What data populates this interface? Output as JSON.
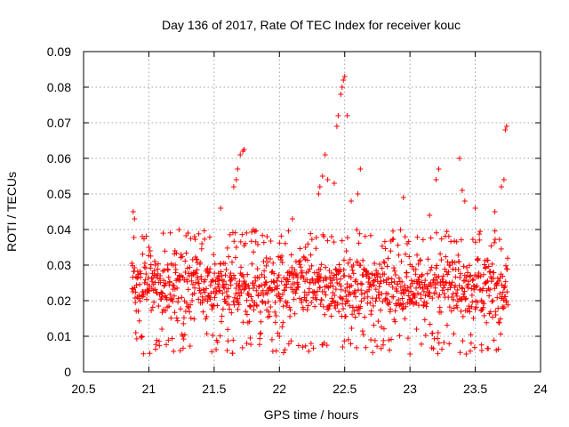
{
  "chart_data": {
    "type": "scatter",
    "title": "Day 136 of 2017, Rate Of TEC Index for receiver kouc",
    "xlabel": "GPS time / hours",
    "ylabel": "ROTI / TECUs",
    "xlim": [
      20.5,
      24
    ],
    "ylim": [
      0,
      0.09
    ],
    "x_ticks": [
      "20.5",
      "21",
      "21.5",
      "22",
      "22.5",
      "23",
      "23.5",
      "24"
    ],
    "y_ticks": [
      "0",
      "0.01",
      "0.02",
      "0.03",
      "0.04",
      "0.05",
      "0.06",
      "0.07",
      "0.08",
      "0.09"
    ],
    "grid": true,
    "marker": "+",
    "series": [
      {
        "name": "ROTI",
        "color": "#ff0000",
        "x_range": [
          20.87,
          23.75
        ],
        "typical_range": [
          0.005,
          0.04
        ],
        "sample_points": [
          [
            20.88,
            0.045
          ],
          [
            20.89,
            0.043
          ],
          [
            20.9,
            0.011
          ],
          [
            20.95,
            0.038
          ],
          [
            21.0,
            0.035
          ],
          [
            21.05,
            0.03
          ],
          [
            21.1,
            0.012
          ],
          [
            21.2,
            0.034
          ],
          [
            21.35,
            0.038
          ],
          [
            21.45,
            0.029
          ],
          [
            21.55,
            0.046
          ],
          [
            21.6,
            0.006
          ],
          [
            21.65,
            0.052
          ],
          [
            21.67,
            0.054
          ],
          [
            21.68,
            0.057
          ],
          [
            21.7,
            0.061
          ],
          [
            21.72,
            0.062
          ],
          [
            21.73,
            0.0625
          ],
          [
            21.75,
            0.008
          ],
          [
            21.8,
            0.04
          ],
          [
            21.9,
            0.032
          ],
          [
            22.0,
            0.01
          ],
          [
            22.1,
            0.043
          ],
          [
            22.2,
            0.035
          ],
          [
            22.3,
            0.05
          ],
          [
            22.31,
            0.052
          ],
          [
            22.33,
            0.055
          ],
          [
            22.35,
            0.061
          ],
          [
            22.37,
            0.054
          ],
          [
            22.4,
            0.038
          ],
          [
            22.42,
            0.053
          ],
          [
            22.44,
            0.069
          ],
          [
            22.45,
            0.072
          ],
          [
            22.47,
            0.078
          ],
          [
            22.48,
            0.08
          ],
          [
            22.49,
            0.082
          ],
          [
            22.5,
            0.083
          ],
          [
            22.52,
            0.072
          ],
          [
            22.55,
            0.048
          ],
          [
            22.6,
            0.05
          ],
          [
            22.62,
            0.057
          ],
          [
            22.7,
            0.009
          ],
          [
            22.8,
            0.031
          ],
          [
            22.95,
            0.049
          ],
          [
            23.0,
            0.005
          ],
          [
            23.05,
            0.012
          ],
          [
            23.15,
            0.044
          ],
          [
            23.2,
            0.054
          ],
          [
            23.22,
            0.057
          ],
          [
            23.3,
            0.03
          ],
          [
            23.38,
            0.06
          ],
          [
            23.4,
            0.051
          ],
          [
            23.42,
            0.048
          ],
          [
            23.5,
            0.046
          ],
          [
            23.55,
            0.006
          ],
          [
            23.65,
            0.045
          ],
          [
            23.7,
            0.052
          ],
          [
            23.72,
            0.054
          ],
          [
            23.73,
            0.068
          ],
          [
            23.74,
            0.069
          ]
        ]
      }
    ]
  }
}
